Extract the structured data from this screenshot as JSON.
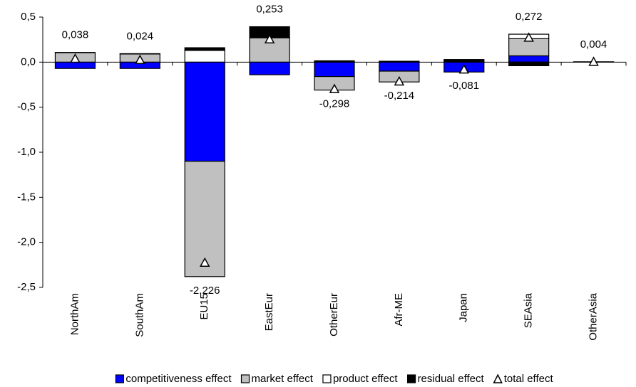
{
  "chart_data": {
    "type": "bar",
    "stacked": true,
    "categories": [
      "NorthAm",
      "SouthAm",
      "EU15",
      "EastEur",
      "OtherEur",
      "Afr-ME",
      "Japan",
      "SEAsia",
      "OtherAsia"
    ],
    "series": [
      {
        "name": "competitiveness effect",
        "color": "#0000ff",
        "values": [
          -0.07,
          -0.07,
          -1.1,
          -0.14,
          -0.16,
          -0.1,
          -0.11,
          0.07,
          0.002
        ]
      },
      {
        "name": "market effect",
        "color": "#c0c0c0",
        "values": [
          0.105,
          0.09,
          -1.28,
          0.27,
          -0.15,
          -0.12,
          0.009,
          0.19,
          0.002
        ]
      },
      {
        "name": "product effect",
        "color": "#ffffff",
        "values": [
          0.003,
          0.004,
          0.13,
          0.003,
          0,
          0,
          0,
          0.05,
          0
        ]
      },
      {
        "name": "residual effect",
        "color": "#000000",
        "values": [
          0,
          0,
          0.03,
          0.12,
          0.015,
          0.01,
          0.02,
          -0.04,
          0
        ]
      },
      {
        "name": "total effect",
        "type": "marker",
        "color": "#ffffff",
        "values": [
          0.038,
          0.024,
          -2.226,
          0.253,
          -0.298,
          -0.214,
          -0.081,
          0.272,
          0.004
        ],
        "value_labels": [
          "0,038",
          "0,024",
          "-2,226",
          "0,253",
          "-0,298",
          "-0,214",
          "-0,081",
          "0,272",
          "0,004"
        ]
      }
    ],
    "ylim": [
      -2.5,
      0.5
    ],
    "yticks": [
      {
        "value": -2.5,
        "label": "-2,5"
      },
      {
        "value": -2.0,
        "label": "-2,0"
      },
      {
        "value": -1.5,
        "label": "-1,5"
      },
      {
        "value": -1.0,
        "label": "-1,0"
      },
      {
        "value": -0.5,
        "label": "-0,5"
      },
      {
        "value": 0,
        "label": "0,0"
      },
      {
        "value": 0.5,
        "label": "0,5"
      }
    ],
    "legend": "bottom"
  }
}
